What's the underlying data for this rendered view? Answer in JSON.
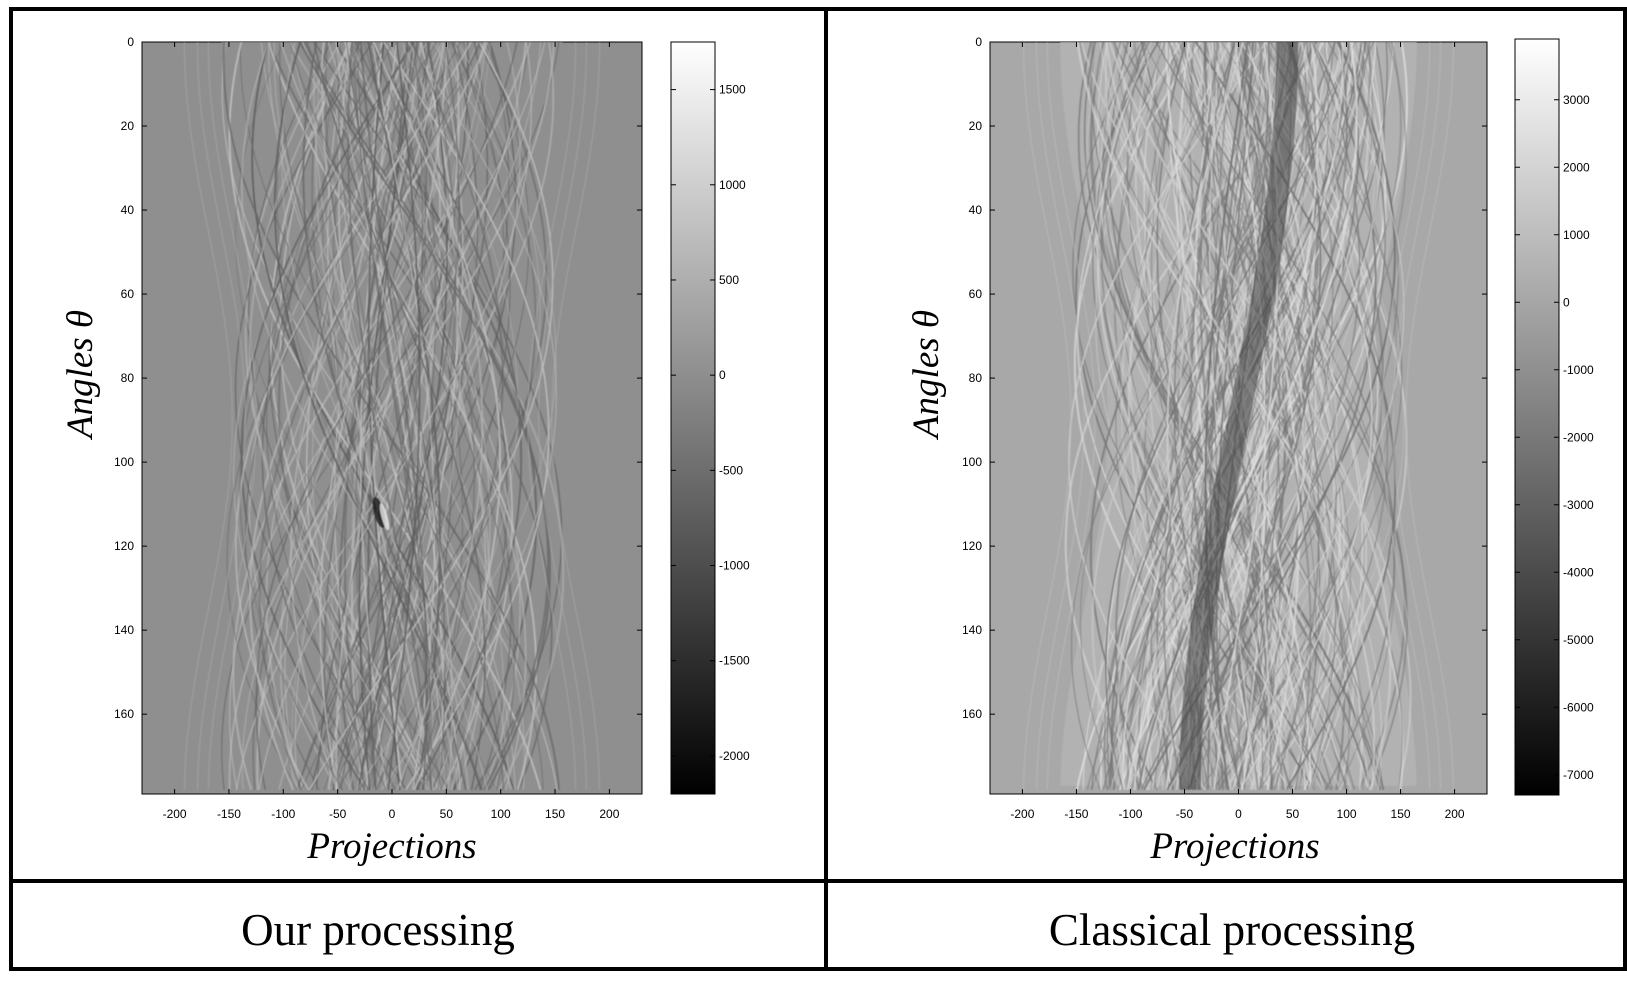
{
  "captions": [
    "Our processing",
    "Classical processing"
  ],
  "chart_data": [
    {
      "type": "heatmap",
      "title": "",
      "xlabel": "Projections",
      "ylabel": "Angles θ",
      "xlim": [
        -230,
        230
      ],
      "ylim": [
        0,
        179
      ],
      "x_ticks": [
        -200,
        -150,
        -100,
        -50,
        0,
        50,
        100,
        150,
        200
      ],
      "y_ticks": [
        0,
        20,
        40,
        60,
        80,
        100,
        120,
        140,
        160
      ],
      "colorbar": {
        "min": -2200,
        "max": 1750,
        "ticks": [
          1500,
          1000,
          500,
          0,
          -500,
          -1000,
          -1500,
          -2000
        ],
        "colormap": "gray"
      },
      "background_gray": 0.56,
      "style": "filtered",
      "grid": false
    },
    {
      "type": "heatmap",
      "title": "",
      "xlabel": "Projections",
      "ylabel": "Angles θ",
      "xlim": [
        -230,
        230
      ],
      "ylim": [
        0,
        179
      ],
      "x_ticks": [
        -200,
        -150,
        -100,
        -50,
        0,
        50,
        100,
        150,
        200
      ],
      "y_ticks": [
        0,
        20,
        40,
        60,
        80,
        100,
        120,
        140,
        160
      ],
      "colorbar": {
        "min": -7300,
        "max": 3900,
        "ticks": [
          3000,
          2000,
          1000,
          0,
          -1000,
          -2000,
          -3000,
          -4000,
          -5000,
          -6000,
          -7000
        ],
        "colormap": "gray"
      },
      "background_gray": 0.66,
      "style": "raw",
      "grid": false
    }
  ]
}
